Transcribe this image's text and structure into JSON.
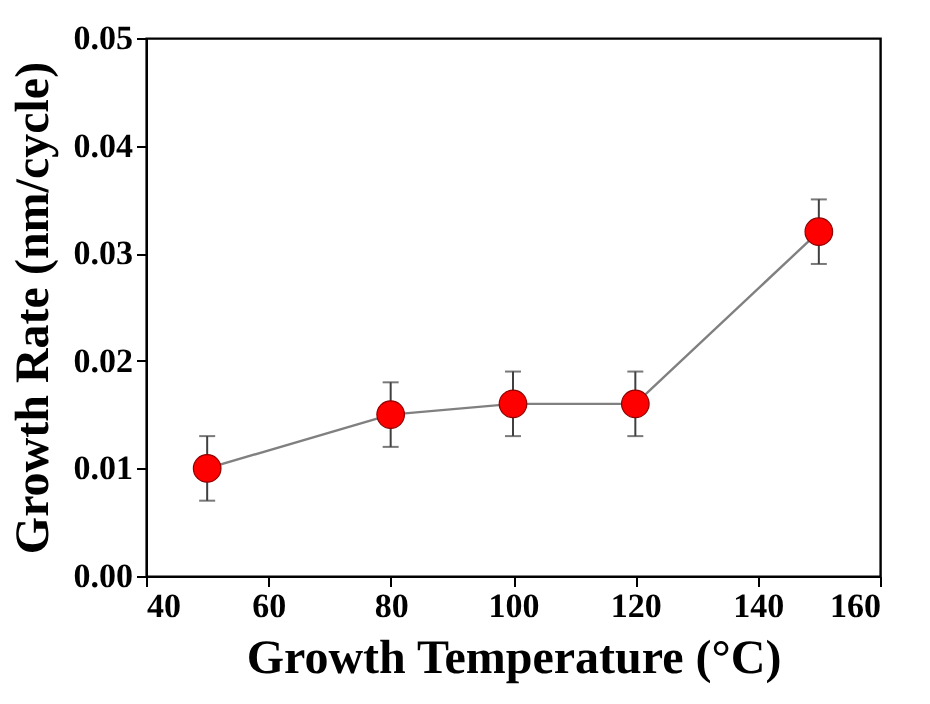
{
  "chart_data": {
    "type": "line",
    "xlabel": "Growth Temperature (°C)",
    "ylabel": "Growth Rate (nm/cycle)",
    "x": [
      50,
      80,
      100,
      120,
      150
    ],
    "series": [
      {
        "color": "#ff0000",
        "values": [
          0.01,
          0.015,
          0.016,
          0.016,
          0.032
        ],
        "errors": [
          0.003,
          0.003,
          0.003,
          0.003,
          0.003
        ]
      }
    ],
    "xlim": [
      40,
      160
    ],
    "xticks": [
      40,
      60,
      80,
      100,
      120,
      140,
      160
    ],
    "ylim": [
      0,
      0.05
    ],
    "yticks": [
      {
        "value": 0,
        "label": "0.00"
      },
      {
        "value": 0.01,
        "label": "0.01"
      },
      {
        "value": 0.02,
        "label": "0.02"
      },
      {
        "value": 0.03,
        "label": "0.03"
      },
      {
        "value": 0.04,
        "label": "0.04"
      },
      {
        "value": 0.05,
        "label": "0.05"
      }
    ],
    "marker": "circle",
    "line_style": "solid",
    "grid": false
  }
}
